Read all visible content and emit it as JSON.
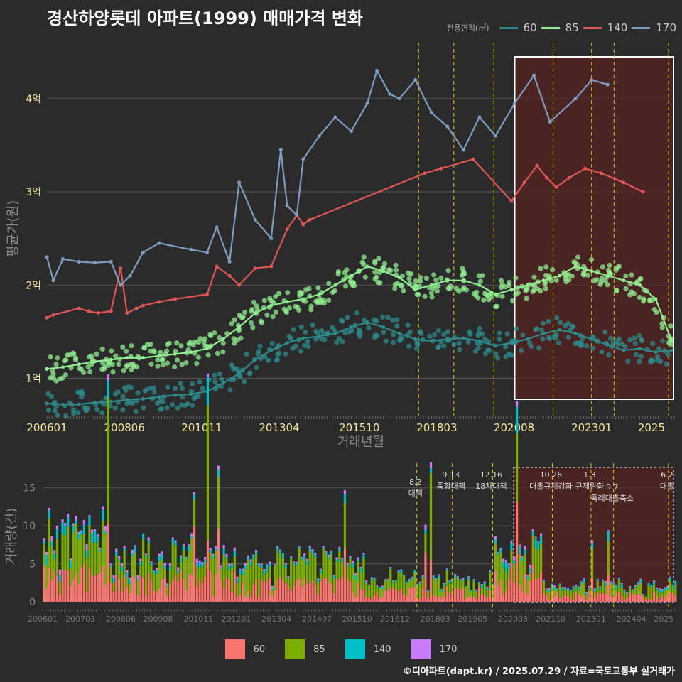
{
  "title": "경산하양롯데 아파트(1999) 매매가격 변화",
  "footer": "©디아파트(dapt.kr) / 2025.07.29 / 자료=국토교통부 실거래가",
  "legend": {
    "title": "전용면적(㎡)",
    "items": [
      {
        "label": "60",
        "line_color": "#2e8b8b",
        "bar_color": "#f8766d"
      },
      {
        "label": "85",
        "line_color": "#90ee90",
        "bar_color": "#7cae00"
      },
      {
        "label": "140",
        "line_color": "#e05555",
        "bar_color": "#00bfc4"
      },
      {
        "label": "170",
        "line_color": "#7f9cc0",
        "bar_color": "#c77cff"
      }
    ]
  },
  "chart_data": [
    {
      "type": "line",
      "ylabel": "평균가(원)",
      "xlabel": "거래년월",
      "x_ticks": [
        "200601",
        "200806",
        "201011",
        "201304",
        "201510",
        "201803",
        "202008",
        "202301",
        "2025"
      ],
      "y_ticks": [
        "1억",
        "2억",
        "3억",
        "4억"
      ],
      "ylim": [
        0.6,
        4.6
      ],
      "xlim": [
        2006.0,
        2025.6
      ],
      "highlight_range": [
        2020.6,
        2025.6
      ],
      "series": [
        {
          "name": "60",
          "x": [
            2006.0,
            2006.5,
            2007.0,
            2007.5,
            2008.0,
            2008.5,
            2009.0,
            2009.5,
            2010.0,
            2010.5,
            2011.0,
            2011.5,
            2012.0,
            2012.5,
            2013.0,
            2013.5,
            2014.0,
            2014.5,
            2015.0,
            2015.5,
            2016.0,
            2016.5,
            2017.0,
            2017.5,
            2018.0,
            2018.5,
            2019.0,
            2019.5,
            2020.0,
            2020.5,
            2021.0,
            2021.5,
            2022.0,
            2022.5,
            2023.0,
            2023.5,
            2024.0,
            2024.5,
            2025.0,
            2025.5
          ],
          "values": [
            0.73,
            0.72,
            0.72,
            0.74,
            0.75,
            0.77,
            0.78,
            0.8,
            0.82,
            0.83,
            0.86,
            0.95,
            1.05,
            1.2,
            1.3,
            1.38,
            1.43,
            1.45,
            1.48,
            1.55,
            1.6,
            1.55,
            1.48,
            1.42,
            1.4,
            1.42,
            1.43,
            1.4,
            1.35,
            1.38,
            1.42,
            1.48,
            1.52,
            1.48,
            1.42,
            1.36,
            1.3,
            1.32,
            1.28,
            1.3
          ]
        },
        {
          "name": "85",
          "x": [
            2006.0,
            2006.5,
            2007.0,
            2007.5,
            2008.0,
            2008.5,
            2009.0,
            2009.5,
            2010.0,
            2010.5,
            2011.0,
            2011.5,
            2012.0,
            2012.5,
            2013.0,
            2013.5,
            2014.0,
            2014.5,
            2015.0,
            2015.5,
            2016.0,
            2016.5,
            2017.0,
            2017.5,
            2018.0,
            2018.5,
            2019.0,
            2019.5,
            2020.0,
            2020.5,
            2021.0,
            2021.5,
            2022.0,
            2022.5,
            2023.0,
            2023.5,
            2024.0,
            2024.5,
            2025.0,
            2025.5
          ],
          "values": [
            1.1,
            1.12,
            1.15,
            1.18,
            1.2,
            1.22,
            1.22,
            1.24,
            1.26,
            1.28,
            1.32,
            1.42,
            1.55,
            1.7,
            1.78,
            1.82,
            1.85,
            1.9,
            2.0,
            2.1,
            2.2,
            2.15,
            2.08,
            1.95,
            2.0,
            2.05,
            2.05,
            2.0,
            1.9,
            1.95,
            2.0,
            2.05,
            2.1,
            2.2,
            2.15,
            2.1,
            2.05,
            2.0,
            1.85,
            1.4
          ]
        },
        {
          "name": "140",
          "x": [
            2006.0,
            2006.2,
            2007.0,
            2007.3,
            2007.6,
            2008.0,
            2008.3,
            2008.5,
            2008.8,
            2009.0,
            2009.5,
            2010.0,
            2011.0,
            2011.3,
            2011.7,
            2012.0,
            2012.5,
            2013.0,
            2013.5,
            2013.8,
            2014.0,
            2014.2,
            2017.8,
            2018.3,
            2019.3,
            2020.5,
            2020.9,
            2021.3,
            2021.6,
            2021.9,
            2022.3,
            2022.8,
            2023.3,
            2024.0,
            2024.6
          ],
          "values": [
            1.65,
            1.68,
            1.75,
            1.72,
            1.7,
            1.72,
            2.18,
            1.7,
            1.75,
            1.78,
            1.82,
            1.85,
            1.9,
            2.2,
            2.1,
            2.0,
            2.18,
            2.2,
            2.6,
            2.75,
            2.65,
            2.7,
            3.2,
            3.25,
            3.35,
            2.9,
            3.1,
            3.28,
            3.15,
            3.05,
            3.15,
            3.25,
            3.2,
            3.1,
            3.0
          ]
        },
        {
          "name": "170",
          "x": [
            2006.0,
            2006.2,
            2006.5,
            2007.0,
            2007.5,
            2008.0,
            2008.3,
            2008.6,
            2009.0,
            2009.5,
            2010.5,
            2011.0,
            2011.3,
            2011.7,
            2012.0,
            2012.5,
            2013.0,
            2013.3,
            2013.5,
            2013.8,
            2014.0,
            2014.5,
            2015.0,
            2015.5,
            2016.0,
            2016.3,
            2016.7,
            2017.0,
            2017.5,
            2018.0,
            2018.5,
            2019.0,
            2019.5,
            2020.0,
            2020.6,
            2021.2,
            2021.7,
            2022.5,
            2023.0,
            2023.5
          ],
          "values": [
            2.3,
            2.05,
            2.28,
            2.25,
            2.24,
            2.25,
            2.0,
            2.1,
            2.35,
            2.45,
            2.38,
            2.35,
            2.62,
            2.25,
            3.1,
            2.7,
            2.5,
            3.45,
            2.85,
            2.75,
            3.35,
            3.6,
            3.8,
            3.65,
            3.95,
            4.3,
            4.05,
            4.0,
            4.2,
            3.85,
            3.7,
            3.45,
            3.8,
            3.6,
            3.95,
            4.25,
            3.75,
            4.0,
            4.2,
            4.15
          ]
        }
      ]
    },
    {
      "type": "bar",
      "ylabel": "거래량(건)",
      "x_ticks": [
        "200601",
        "200703",
        "200806",
        "200908",
        "201011",
        "201201",
        "201304",
        "201407",
        "201510",
        "201612",
        "201803",
        "201905",
        "202008",
        "202110",
        "202301",
        "202404",
        "2025"
      ],
      "y_ticks": [
        0,
        5,
        10,
        15
      ],
      "ylim": [
        0,
        17.5
      ],
      "stacked": true,
      "highlight_range": [
        2020.6,
        2025.6
      ],
      "events": [
        {
          "date": "8.2 대책",
          "x": 2017.6
        },
        {
          "date": "9.13 종합대책",
          "x": 2018.7
        },
        {
          "date": "12.16 18차대책",
          "x": 2019.95
        },
        {
          "date": "10.26 대출규제강화",
          "x": 2021.8
        },
        {
          "date": "1.3 규제완화",
          "x": 2023.0
        },
        {
          "date": "9.7 특례대출축소",
          "x": 2023.7
        },
        {
          "date": "6.2 대출",
          "x": 2025.4
        }
      ],
      "period_volume_profile": [
        {
          "from": 2006.0,
          "to": 2008.0,
          "values": [
            3,
            4,
            1,
            0.5
          ]
        },
        {
          "from": 2008.0,
          "to": 2012.0,
          "values": [
            2.5,
            3,
            0.5,
            0.3
          ]
        },
        {
          "from": 2012.0,
          "to": 2016.0,
          "values": [
            2,
            2.5,
            0.4,
            0.2
          ]
        },
        {
          "from": 2016.0,
          "to": 2020.0,
          "values": [
            1.2,
            1.5,
            0.2,
            0.1
          ]
        },
        {
          "from": 2020.0,
          "to": 2021.5,
          "values": [
            3,
            2.5,
            0.8,
            0.3
          ]
        },
        {
          "from": 2021.5,
          "to": 2025.6,
          "values": [
            0.8,
            1,
            0.3,
            0.1
          ]
        }
      ]
    }
  ]
}
